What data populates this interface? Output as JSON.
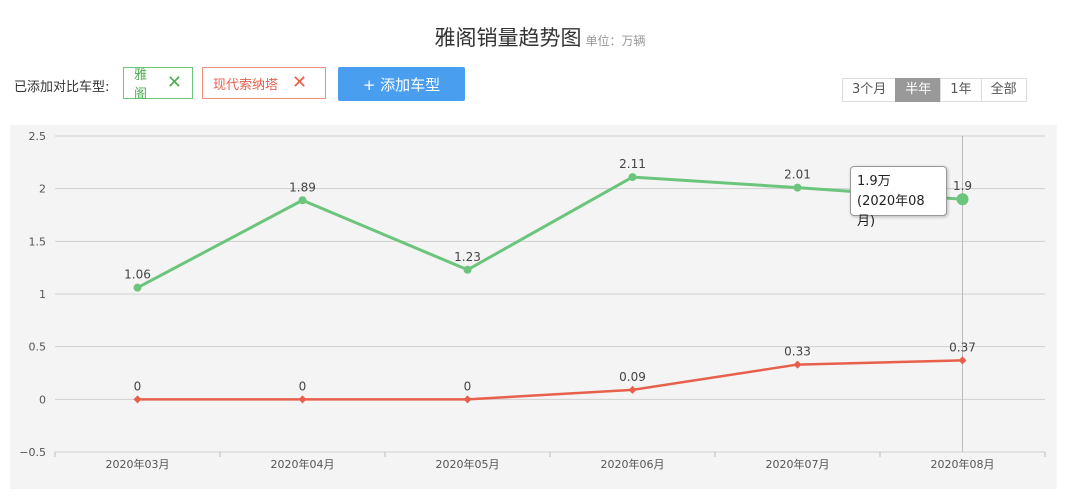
{
  "title": {
    "main": "雅阁销量趋势图",
    "unit": "单位：万辆"
  },
  "toolbar": {
    "added_label": "已添加对比车型:",
    "tags": [
      {
        "label": "雅阁",
        "color": "#4caf50"
      },
      {
        "label": "现代索纳塔",
        "color": "#e8604c"
      }
    ],
    "remove_glyph": "✕",
    "add_button": "+ 添加车型",
    "ranges": [
      "3个月",
      "半年",
      "1年",
      "全部"
    ],
    "active_range": "半年"
  },
  "tooltip": {
    "line1": "1.9万",
    "line2": "(2020年08月)"
  },
  "chart_data": {
    "type": "line",
    "categories": [
      "2020年03月",
      "2020年04月",
      "2020年05月",
      "2020年06月",
      "2020年07月",
      "2020年08月"
    ],
    "series": [
      {
        "name": "雅阁",
        "color": "#6cc57c",
        "values": [
          1.06,
          1.89,
          1.23,
          2.11,
          2.01,
          1.9
        ]
      },
      {
        "name": "现代索纳塔",
        "color": "#e8604c",
        "values": [
          0,
          0,
          0,
          0.09,
          0.33,
          0.37
        ]
      }
    ],
    "yticks": [
      "2.5",
      "2",
      "1.5",
      "1",
      "0.5",
      "0",
      "−0.5"
    ],
    "ylim": [
      -0.5,
      2.5
    ],
    "grid": true,
    "highlighted_category": "2020年08月"
  }
}
